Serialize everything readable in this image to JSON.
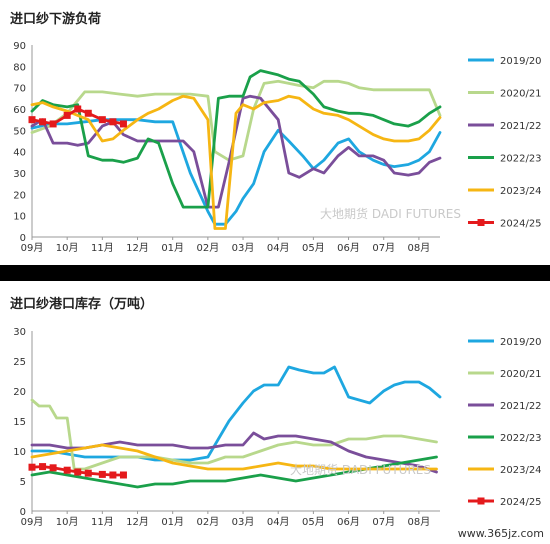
{
  "chart_data": [
    {
      "type": "line",
      "title": "进口纱下游负荷",
      "xlabel": "",
      "ylabel": "",
      "x_ticks": [
        "09月",
        "10月",
        "11月",
        "12月",
        "01月",
        "02月",
        "03月",
        "04月",
        "05月",
        "06月",
        "07月",
        "08月"
      ],
      "ylim": [
        0,
        90
      ],
      "y_ticks": [
        0,
        10,
        20,
        30,
        40,
        50,
        60,
        70,
        80,
        90
      ],
      "grid": false,
      "legend": "right",
      "series": [
        {
          "name": "2019/20",
          "color": "#1ea7e0",
          "marker": "none",
          "x": [
            0,
            0.5,
            1,
            1.5,
            2,
            2.5,
            3,
            3.5,
            4,
            4.5,
            5,
            5.2,
            5.5,
            5.8,
            6,
            6.3,
            6.6,
            7,
            7.3,
            7.7,
            8,
            8.3,
            8.7,
            9,
            9.3,
            9.7,
            10,
            10.3,
            10.7,
            11,
            11.3,
            11.6
          ],
          "y": [
            51,
            53,
            53,
            54,
            55,
            55,
            55,
            54,
            54,
            30,
            12,
            6,
            6,
            12,
            18,
            25,
            40,
            50,
            45,
            38,
            32,
            36,
            44,
            46,
            40,
            36,
            34,
            33,
            34,
            36,
            40,
            49
          ]
        },
        {
          "name": "2020/21",
          "color": "#b8d88c",
          "marker": "none",
          "x": [
            0,
            0.5,
            1,
            1.5,
            2,
            2.5,
            3,
            3.5,
            4,
            4.5,
            5,
            5.2,
            5.6,
            6,
            6.3,
            6.6,
            7,
            7.3,
            7.6,
            8,
            8.3,
            8.7,
            9,
            9.3,
            9.7,
            10,
            10.3,
            10.7,
            11,
            11.3,
            11.6
          ],
          "y": [
            49,
            52,
            58,
            68,
            68,
            67,
            66,
            67,
            67,
            67,
            66,
            40,
            36,
            38,
            60,
            72,
            73,
            72,
            71,
            70,
            73,
            73,
            72,
            70,
            69,
            69,
            69,
            69,
            69,
            69,
            57
          ]
        },
        {
          "name": "2021/22",
          "color": "#7a4e9a",
          "marker": "none",
          "x": [
            0,
            0.3,
            0.6,
            1,
            1.3,
            1.6,
            2,
            2.3,
            2.6,
            3,
            3.3,
            3.6,
            4,
            4.3,
            4.6,
            5,
            5.3,
            5.6,
            6,
            6.2,
            6.5,
            7,
            7.3,
            7.6,
            8,
            8.3,
            8.7,
            9,
            9.3,
            9.7,
            10,
            10.3,
            10.7,
            11,
            11.3,
            11.6
          ],
          "y": [
            52,
            55,
            44,
            44,
            43,
            44,
            52,
            54,
            48,
            45,
            45,
            45,
            45,
            45,
            40,
            14,
            14,
            35,
            65,
            66,
            65,
            55,
            30,
            28,
            32,
            30,
            38,
            42,
            38,
            38,
            36,
            30,
            29,
            30,
            35,
            37
          ]
        },
        {
          "name": "2022/23",
          "color": "#1aa04a",
          "marker": "none",
          "x": [
            0,
            0.3,
            0.6,
            1,
            1.3,
            1.6,
            2,
            2.3,
            2.6,
            3,
            3.3,
            3.6,
            4,
            4.3,
            4.6,
            5,
            5.3,
            5.6,
            6,
            6.2,
            6.5,
            7,
            7.3,
            7.6,
            8,
            8.3,
            8.7,
            9,
            9.3,
            9.7,
            10,
            10.3,
            10.7,
            11,
            11.3,
            11.6
          ],
          "y": [
            59,
            64,
            62,
            61,
            62,
            38,
            36,
            36,
            35,
            37,
            46,
            44,
            25,
            14,
            14,
            14,
            65,
            66,
            66,
            75,
            78,
            76,
            74,
            73,
            67,
            61,
            59,
            58,
            58,
            57,
            55,
            53,
            52,
            54,
            58,
            61
          ]
        },
        {
          "name": "2023/24",
          "color": "#f6b613",
          "marker": "none",
          "x": [
            0,
            0.3,
            0.6,
            1,
            1.3,
            1.6,
            2,
            2.3,
            2.6,
            3,
            3.3,
            3.6,
            4,
            4.3,
            4.6,
            5,
            5.2,
            5.5,
            5.8,
            6,
            6.3,
            6.6,
            7,
            7.3,
            7.6,
            8,
            8.3,
            8.7,
            9,
            9.3,
            9.7,
            10,
            10.3,
            10.7,
            11,
            11.3,
            11.6
          ],
          "y": [
            62,
            63,
            61,
            59,
            57,
            55,
            45,
            46,
            50,
            55,
            58,
            60,
            64,
            66,
            65,
            55,
            4,
            4,
            58,
            62,
            60,
            63,
            64,
            66,
            65,
            60,
            58,
            57,
            55,
            52,
            48,
            46,
            45,
            45,
            46,
            50,
            56
          ]
        },
        {
          "name": "2024/25",
          "color": "#e41a1c",
          "marker": "square",
          "x": [
            0,
            0.3,
            0.6,
            1,
            1.3,
            1.6,
            2,
            2.3,
            2.6
          ],
          "y": [
            55,
            54,
            53,
            57,
            60,
            58,
            55,
            54,
            53
          ]
        }
      ]
    },
    {
      "type": "line",
      "title": "进口纱港口库存（万吨）",
      "xlabel": "",
      "ylabel": "",
      "x_ticks": [
        "09月",
        "10月",
        "11月",
        "12月",
        "01月",
        "02月",
        "03月",
        "04月",
        "05月",
        "06月",
        "07月",
        "08月"
      ],
      "ylim": [
        0,
        30
      ],
      "y_ticks": [
        0,
        5,
        10,
        15,
        20,
        25,
        30
      ],
      "grid": false,
      "legend": "right",
      "series": [
        {
          "name": "2019/20",
          "color": "#1ea7e0",
          "marker": "none",
          "x": [
            0,
            0.5,
            1,
            1.5,
            2,
            2.5,
            3,
            3.5,
            4,
            4.5,
            5,
            5.3,
            5.6,
            6,
            6.3,
            6.6,
            7,
            7.3,
            7.6,
            8,
            8.3,
            8.6,
            9,
            9.3,
            9.6,
            10,
            10.3,
            10.6,
            11,
            11.3,
            11.6
          ],
          "y": [
            10,
            10,
            9.5,
            9,
            9,
            9,
            9,
            8.5,
            8.5,
            8.5,
            9,
            12,
            15,
            18,
            20,
            21,
            21,
            24,
            23.5,
            23,
            23,
            24,
            19,
            18.5,
            18,
            20,
            21,
            21.5,
            21.5,
            20.5,
            19
          ]
        },
        {
          "name": "2020/21",
          "color": "#b8d88c",
          "marker": "none",
          "x": [
            0,
            0.2,
            0.5,
            0.7,
            1,
            1.2,
            1.5,
            2,
            2.5,
            3,
            3.5,
            4,
            4.5,
            5,
            5.5,
            6,
            6.5,
            7,
            7.5,
            8,
            8.5,
            9,
            9.5,
            10,
            10.5,
            11,
            11.5
          ],
          "y": [
            18.5,
            17.5,
            17.5,
            15.5,
            15.5,
            7,
            7,
            8,
            9,
            9,
            9,
            8.5,
            8,
            8,
            9,
            9,
            10,
            11,
            11.5,
            11,
            11,
            12,
            12,
            12.5,
            12.5,
            12,
            11.5
          ]
        },
        {
          "name": "2021/22",
          "color": "#7a4e9a",
          "marker": "none",
          "x": [
            0,
            0.5,
            1,
            1.5,
            2,
            2.5,
            3,
            3.5,
            4,
            4.5,
            5,
            5.5,
            6,
            6.3,
            6.6,
            7,
            7.5,
            8,
            8.5,
            9,
            9.5,
            10,
            10.5,
            11,
            11.5
          ],
          "y": [
            11,
            11,
            10.5,
            10.5,
            11,
            11.5,
            11,
            11,
            11,
            10.5,
            10.5,
            11,
            11,
            13,
            12,
            12.5,
            12.5,
            12,
            11.5,
            10,
            9,
            8.5,
            8,
            7.5,
            6.5
          ]
        },
        {
          "name": "2022/23",
          "color": "#1aa04a",
          "marker": "none",
          "x": [
            0,
            0.5,
            1,
            1.5,
            2,
            2.5,
            3,
            3.5,
            4,
            4.5,
            5,
            5.5,
            6,
            6.5,
            7,
            7.5,
            8,
            8.5,
            9,
            9.5,
            10,
            10.5,
            11,
            11.5
          ],
          "y": [
            6,
            6.5,
            6,
            5.5,
            5,
            4.5,
            4,
            4.5,
            4.5,
            5,
            5,
            5,
            5.5,
            6,
            5.5,
            5,
            5.5,
            6,
            6.5,
            7,
            7.5,
            8,
            8.5,
            9
          ]
        },
        {
          "name": "2023/24",
          "color": "#f6b613",
          "marker": "none",
          "x": [
            0,
            0.5,
            1,
            1.5,
            2,
            2.5,
            3,
            3.5,
            4,
            4.5,
            5,
            5.5,
            6,
            6.5,
            7,
            7.5,
            8,
            8.5,
            9,
            9.5,
            10,
            10.5,
            11,
            11.5
          ],
          "y": [
            9,
            9.5,
            10,
            10.5,
            11,
            10.5,
            10,
            9,
            8,
            7.5,
            7,
            7,
            7,
            7.5,
            8,
            7.5,
            7.5,
            7,
            7,
            7,
            7,
            7,
            7,
            7
          ]
        },
        {
          "name": "2024/25",
          "color": "#e41a1c",
          "marker": "square",
          "x": [
            0,
            0.3,
            0.6,
            1,
            1.3,
            1.6,
            2,
            2.3,
            2.6
          ],
          "y": [
            7.3,
            7.4,
            7.2,
            6.8,
            6.5,
            6.3,
            6.1,
            6.0,
            6.0
          ]
        }
      ]
    }
  ],
  "watermark": {
    "text": "大地期货 DADI FUTURES"
  },
  "site_mark": "www.365jz.com"
}
